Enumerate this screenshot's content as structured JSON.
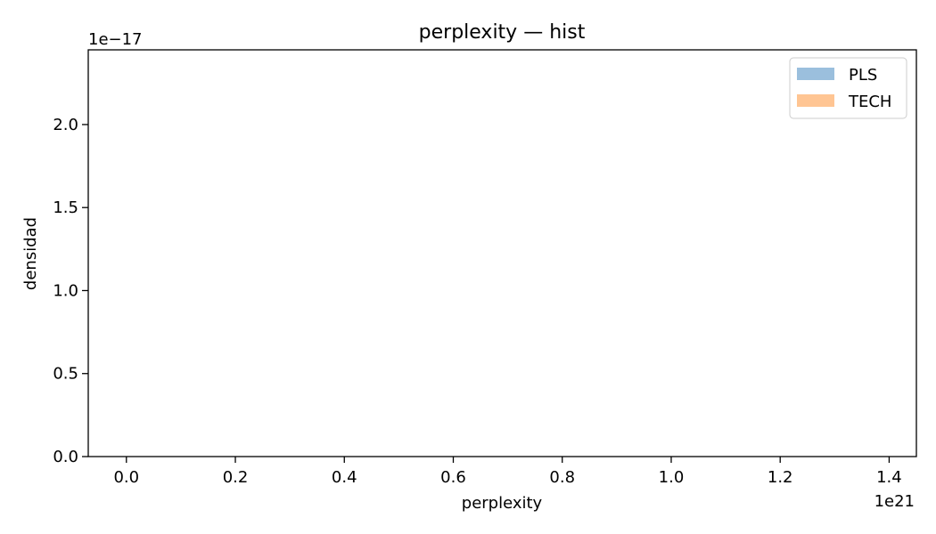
{
  "chart_data": {
    "type": "bar",
    "title": "perplexity — hist",
    "xlabel": "perplexity",
    "ylabel": "densidad",
    "x_offset_text": "1e21",
    "y_offset_text": "1e−17",
    "x_ticks": [
      0.0,
      0.2,
      0.4,
      0.6,
      0.8,
      1.0,
      1.2,
      1.4
    ],
    "x_tick_labels": [
      "0.0",
      "0.2",
      "0.4",
      "0.6",
      "0.8",
      "1.0",
      "1.2",
      "1.4"
    ],
    "y_ticks": [
      0.0,
      0.5,
      1.0,
      1.5,
      2.0
    ],
    "y_tick_labels": [
      "0.0",
      "0.5",
      "1.0",
      "1.5",
      "2.0"
    ],
    "xlim": [
      -0.07,
      1.45
    ],
    "ylim": [
      0,
      2.45
    ],
    "grid": false,
    "legend_position": "top-right",
    "series": [
      {
        "name": "PLS",
        "color": "#9bbfdd",
        "values": []
      },
      {
        "name": "TECH",
        "color": "#ffc593",
        "values": []
      }
    ]
  }
}
